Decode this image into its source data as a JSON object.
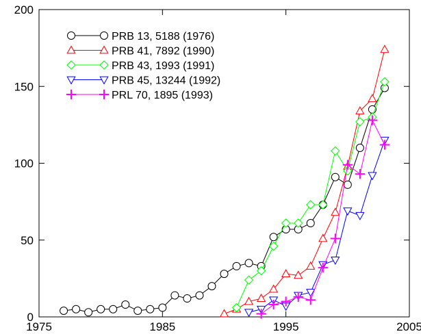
{
  "chart_data": {
    "type": "line",
    "title": "",
    "xlabel": "",
    "ylabel": "",
    "xlim": [
      1975,
      2005
    ],
    "ylim": [
      0,
      200
    ],
    "xticks": [
      1975,
      1985,
      1995,
      2005
    ],
    "yticks": [
      0,
      50,
      100,
      150,
      200
    ],
    "grid": false,
    "legend_position": "top-left",
    "series": [
      {
        "name": "PRB 13, 5188 (1976)",
        "color": "#000000",
        "marker": "circle",
        "x": [
          1977,
          1978,
          1979,
          1980,
          1981,
          1982,
          1983,
          1984,
          1985,
          1986,
          1987,
          1988,
          1989,
          1990,
          1991,
          1992,
          1993,
          1994,
          1995,
          1996,
          1997,
          1998,
          1999,
          2000,
          2001,
          2002,
          2003
        ],
        "y": [
          4,
          5,
          3,
          5,
          5,
          8,
          4,
          5,
          6,
          14,
          12,
          14,
          20,
          28,
          33,
          35,
          33,
          52,
          57,
          57,
          61,
          73,
          91,
          86,
          110,
          135,
          149
        ]
      },
      {
        "name": "PRB 41, 7892 (1990)",
        "color": "#ff0000",
        "marker": "triangle-up",
        "x": [
          1990,
          1991,
          1992,
          1993,
          1994,
          1995,
          1996,
          1997,
          1998,
          1999,
          2000,
          2001,
          2002,
          2003
        ],
        "y": [
          2,
          5,
          10,
          12,
          18,
          28,
          27,
          33,
          51,
          68,
          98,
          134,
          142,
          174
        ]
      },
      {
        "name": "PRB 43, 1993 (1991)",
        "color": "#00ff00",
        "marker": "diamond",
        "x": [
          1991,
          1992,
          1993,
          1994,
          1995,
          1996,
          1997,
          1998,
          1999,
          2000,
          2001,
          2002,
          2003
        ],
        "y": [
          6,
          24,
          30,
          46,
          61,
          61,
          73,
          73,
          108,
          95,
          127,
          130,
          153
        ]
      },
      {
        "name": "PRB 45, 13244 (1992)",
        "color": "#0000ff",
        "marker": "triangle-down",
        "x": [
          1992,
          1993,
          1994,
          1995,
          1996,
          1997,
          1998,
          1999,
          2000,
          2001,
          2002,
          2003
        ],
        "y": [
          3,
          5,
          11,
          7,
          14,
          16,
          34,
          37,
          69,
          66,
          92,
          115
        ]
      },
      {
        "name": "PRL 70, 1895 (1993)",
        "color": "#ff00ff",
        "marker": "plus",
        "x": [
          1993,
          1994,
          1995,
          1996,
          1997,
          1998,
          1999,
          2000,
          2001,
          2002,
          2003
        ],
        "y": [
          2,
          8,
          10,
          13,
          11,
          32,
          51,
          99,
          93,
          128,
          112
        ]
      }
    ]
  }
}
